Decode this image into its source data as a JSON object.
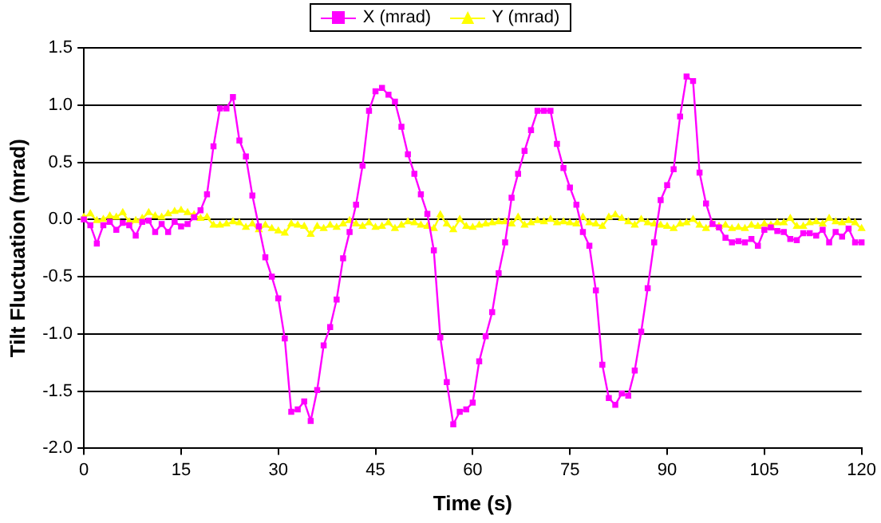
{
  "chart_data": {
    "type": "line",
    "xlabel": "Time (s)",
    "ylabel": "Tilt Fluctuation (mrad)",
    "x": [
      0,
      1,
      2,
      3,
      4,
      5,
      6,
      7,
      8,
      9,
      10,
      11,
      12,
      13,
      14,
      15,
      16,
      17,
      18,
      19,
      20,
      21,
      22,
      23,
      24,
      25,
      26,
      27,
      28,
      29,
      30,
      31,
      32,
      33,
      34,
      35,
      36,
      37,
      38,
      39,
      40,
      41,
      42,
      43,
      44,
      45,
      46,
      47,
      48,
      49,
      50,
      51,
      52,
      53,
      54,
      55,
      56,
      57,
      58,
      59,
      60,
      61,
      62,
      63,
      64,
      65,
      66,
      67,
      68,
      69,
      70,
      71,
      72,
      73,
      74,
      75,
      76,
      77,
      78,
      79,
      80,
      81,
      82,
      83,
      84,
      85,
      86,
      87,
      88,
      89,
      90,
      91,
      92,
      93,
      94,
      95,
      96,
      97,
      98,
      99,
      100,
      101,
      102,
      103,
      104,
      105,
      106,
      107,
      108,
      109,
      110,
      111,
      112,
      113,
      114,
      115,
      116,
      117,
      118,
      119,
      120
    ],
    "series": [
      {
        "name": "X (mrad)",
        "color": "#ff00ff",
        "marker": "square",
        "values": [
          0,
          -0.05,
          -0.21,
          -0.05,
          -0.02,
          -0.09,
          -0.03,
          -0.05,
          -0.14,
          -0.02,
          -0.01,
          -0.11,
          -0.04,
          -0.11,
          -0.02,
          -0.06,
          -0.04,
          0.02,
          0.08,
          0.22,
          0.64,
          0.97,
          0.97,
          1.07,
          0.69,
          0.55,
          0.21,
          -0.06,
          -0.33,
          -0.5,
          -0.69,
          -1.04,
          -1.68,
          -1.66,
          -1.59,
          -1.76,
          -1.49,
          -1.1,
          -0.94,
          -0.7,
          -0.34,
          -0.11,
          0.13,
          0.47,
          0.95,
          1.12,
          1.15,
          1.09,
          1.03,
          0.81,
          0.57,
          0.4,
          0.22,
          0.05,
          -0.27,
          -1.03,
          -1.42,
          -1.79,
          -1.68,
          -1.66,
          -1.6,
          -1.24,
          -1.02,
          -0.81,
          -0.47,
          -0.2,
          0.19,
          0.4,
          0.6,
          0.78,
          0.95,
          0.95,
          0.95,
          0.66,
          0.45,
          0.28,
          0.13,
          -0.11,
          -0.23,
          -0.62,
          -1.27,
          -1.56,
          -1.62,
          -1.52,
          -1.54,
          -1.32,
          -0.98,
          -0.6,
          -0.2,
          0.17,
          0.3,
          0.44,
          0.9,
          1.25,
          1.21,
          0.41,
          0.14,
          -0.04,
          -0.07,
          -0.16,
          -0.2,
          -0.19,
          -0.2,
          -0.17,
          -0.23,
          -0.09,
          -0.07,
          -0.1,
          -0.11,
          -0.17,
          -0.18,
          -0.12,
          -0.12,
          -0.14,
          -0.09,
          -0.2,
          -0.11,
          -0.15,
          -0.08,
          -0.2,
          -0.2
        ]
      },
      {
        "name": "Y (mrad)",
        "color": "#ffff00",
        "marker": "triangle",
        "values": [
          0.02,
          0.05,
          -0.01,
          0,
          0.03,
          0.02,
          0.06,
          -0.02,
          -0.01,
          0.01,
          0.06,
          0.03,
          0.02,
          0.05,
          0.07,
          0.08,
          0.06,
          0.04,
          0.01,
          0.02,
          -0.05,
          -0.05,
          -0.04,
          -0.02,
          -0.03,
          -0.07,
          -0.04,
          -0.09,
          -0.05,
          -0.08,
          -0.1,
          -0.12,
          -0.04,
          -0.05,
          -0.06,
          -0.13,
          -0.06,
          -0.08,
          -0.05,
          -0.07,
          -0.04,
          -0.01,
          -0.04,
          -0.06,
          -0.03,
          -0.07,
          -0.06,
          -0.03,
          -0.08,
          -0.05,
          -0.02,
          -0.03,
          -0.05,
          -0.06,
          -0.08,
          0.04,
          -0.04,
          -0.09,
          0,
          -0.06,
          -0.07,
          -0.05,
          -0.04,
          -0.03,
          -0.02,
          -0.02,
          -0.04,
          0.02,
          -0.05,
          -0.03,
          -0.01,
          -0.02,
          0,
          -0.03,
          -0.02,
          -0.03,
          -0.04,
          0.02,
          -0.03,
          -0.04,
          -0.06,
          0.02,
          0.04,
          0.01,
          -0.02,
          -0.05,
          0,
          -0.03,
          -0.04,
          -0.05,
          -0.06,
          -0.08,
          -0.04,
          -0.03,
          0,
          -0.05,
          -0.08,
          -0.04,
          -0.06,
          -0.05,
          -0.08,
          -0.07,
          -0.08,
          -0.05,
          -0.06,
          -0.04,
          -0.05,
          -0.03,
          -0.03,
          0.01,
          -0.06,
          -0.06,
          -0.03,
          -0.02,
          -0.04,
          0.01,
          -0.02,
          -0.03,
          -0.01,
          -0.03,
          -0.08
        ]
      }
    ],
    "xlim": [
      0,
      120
    ],
    "xticks": [
      0,
      15,
      30,
      45,
      60,
      75,
      90,
      105,
      120
    ],
    "ylim": [
      -2,
      1.5
    ],
    "yticks": [
      {
        "value": -2,
        "label": "-2.0"
      },
      {
        "value": -1.5,
        "label": "-1.5"
      },
      {
        "value": -1,
        "label": "-1.0"
      },
      {
        "value": -0.5,
        "label": "-0.5"
      },
      {
        "value": 0,
        "label": "0.0"
      },
      {
        "value": 0.5,
        "label": "0.5"
      },
      {
        "value": 1,
        "label": "1.0"
      },
      {
        "value": 1.5,
        "label": "1.5"
      }
    ],
    "grid": "y",
    "legend": "top",
    "line_style": "solid"
  }
}
